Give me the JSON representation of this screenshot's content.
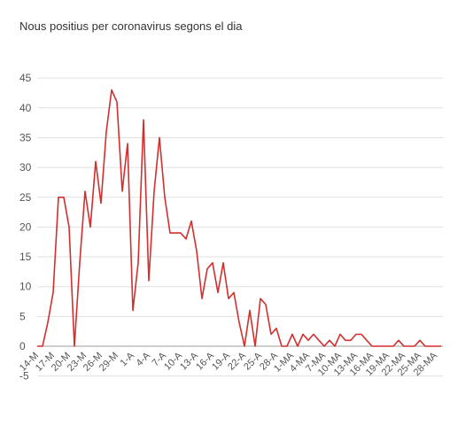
{
  "chart_data": {
    "type": "line",
    "title": "Nous positius per coronavirus segons el dia",
    "ylim": [
      -5,
      45
    ],
    "yticks": [
      -5,
      0,
      5,
      10,
      15,
      20,
      25,
      30,
      35,
      40,
      45
    ],
    "grid": true,
    "line_color": "#d32f2f",
    "x_tick_labels": [
      "14-M",
      "17-M",
      "20-M",
      "23-M",
      "26-M",
      "29-M",
      "1-A",
      "4-A",
      "7-A",
      "10-A",
      "13-A",
      "16-A",
      "19-A",
      "22-A",
      "25-A",
      "28-A",
      "1-MA",
      "4-MA",
      "7-MA",
      "10-MA",
      "13-MA",
      "16-MA",
      "19-MA",
      "22-MA",
      "25-MA",
      "28-MA"
    ],
    "series": [
      {
        "values": [
          0,
          0,
          4,
          9,
          25,
          25,
          20,
          0,
          14,
          26,
          20,
          31,
          24,
          36,
          43,
          41,
          26,
          34,
          6,
          14,
          38,
          11,
          26,
          35,
          25,
          19,
          19,
          19,
          18,
          21,
          16,
          8,
          13,
          14,
          9,
          14,
          8,
          9,
          4,
          0,
          6,
          0,
          8,
          7,
          2,
          3,
          0,
          0,
          2,
          0,
          2,
          1,
          2,
          1,
          0,
          1,
          0,
          2,
          1,
          1,
          2,
          2,
          1,
          0,
          0,
          0,
          0,
          0,
          1,
          0,
          0,
          0,
          1,
          0,
          0,
          0,
          0
        ]
      }
    ]
  }
}
